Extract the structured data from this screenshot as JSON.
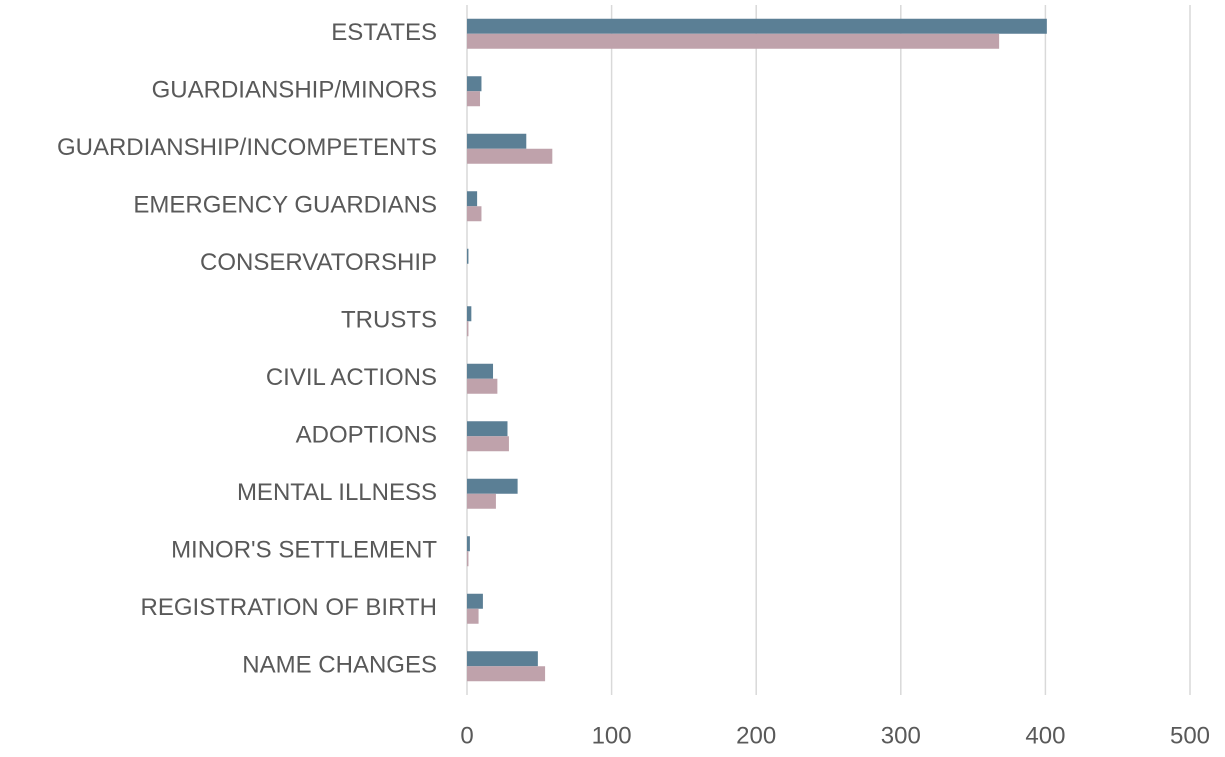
{
  "chart_data": {
    "type": "hbar",
    "categories": [
      "ESTATES",
      "GUARDIANSHIP/MINORS",
      "GUARDIANSHIP/INCOMPETENTS",
      "EMERGENCY GUARDIANS",
      "CONSERVATORSHIP",
      "TRUSTS",
      "CIVIL ACTIONS",
      "ADOPTIONS",
      "MENTAL ILLNESS",
      "MINOR'S SETTLEMENT",
      "REGISTRATION OF BIRTH",
      "NAME CHANGES"
    ],
    "series": [
      {
        "color": "#5b7f95",
        "values": [
          401,
          10,
          41,
          7,
          1,
          3,
          18,
          28,
          35,
          2,
          11,
          49
        ]
      },
      {
        "color": "#bfa2ab",
        "values": [
          368,
          9,
          59,
          10,
          0,
          1,
          21,
          29,
          20,
          1,
          8,
          54
        ]
      }
    ],
    "xlim": [
      0,
      500
    ],
    "xticks": [
      0,
      100,
      200,
      300,
      400,
      500
    ],
    "grid": true
  }
}
